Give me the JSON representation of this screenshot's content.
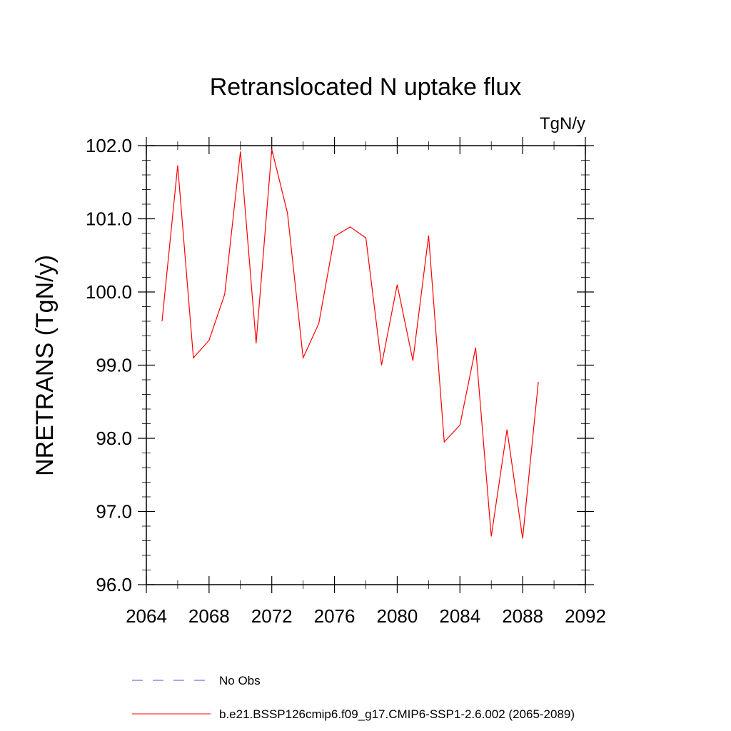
{
  "chart_data": {
    "type": "line",
    "title": "Retranslocated N uptake flux",
    "units": "TgN/y",
    "ylabel": "NRETRANS  (TgN/y)",
    "xlabel": "",
    "xlim": [
      2064,
      2092
    ],
    "ylim": [
      96.0,
      102.0
    ],
    "xticks": [
      "2064",
      "2068",
      "2072",
      "2076",
      "2080",
      "2084",
      "2088",
      "2092"
    ],
    "yticks": [
      "96.0",
      "97.0",
      "98.0",
      "99.0",
      "100.0",
      "101.0",
      "102.0"
    ],
    "grid": false,
    "legend_position": "bottom",
    "series": [
      {
        "name": "b.e21.BSSP126cmip6.f09_g17.CMIP6-SSP1-2.6.002 (2065-2089)",
        "color": "#ff0000",
        "x": [
          2065,
          2066,
          2067,
          2068,
          2069,
          2070,
          2071,
          2072,
          2073,
          2074,
          2075,
          2076,
          2077,
          2078,
          2079,
          2080,
          2081,
          2082,
          2083,
          2084,
          2085,
          2086,
          2087,
          2088,
          2089
        ],
        "values": [
          99.6,
          101.73,
          99.1,
          99.34,
          99.97,
          101.92,
          99.3,
          101.95,
          101.08,
          99.1,
          99.57,
          100.76,
          100.89,
          100.74,
          99.0,
          100.1,
          99.06,
          100.77,
          97.95,
          98.18,
          99.24,
          96.66,
          98.12,
          96.63,
          98.77
        ]
      }
    ],
    "legend": [
      {
        "label": "No Obs",
        "color": "#5a4fcf",
        "style": "dashed"
      },
      {
        "label": "b.e21.BSSP126cmip6.f09_g17.CMIP6-SSP1-2.6.002 (2065-2089)",
        "color": "#ff0000",
        "style": "solid"
      }
    ]
  }
}
